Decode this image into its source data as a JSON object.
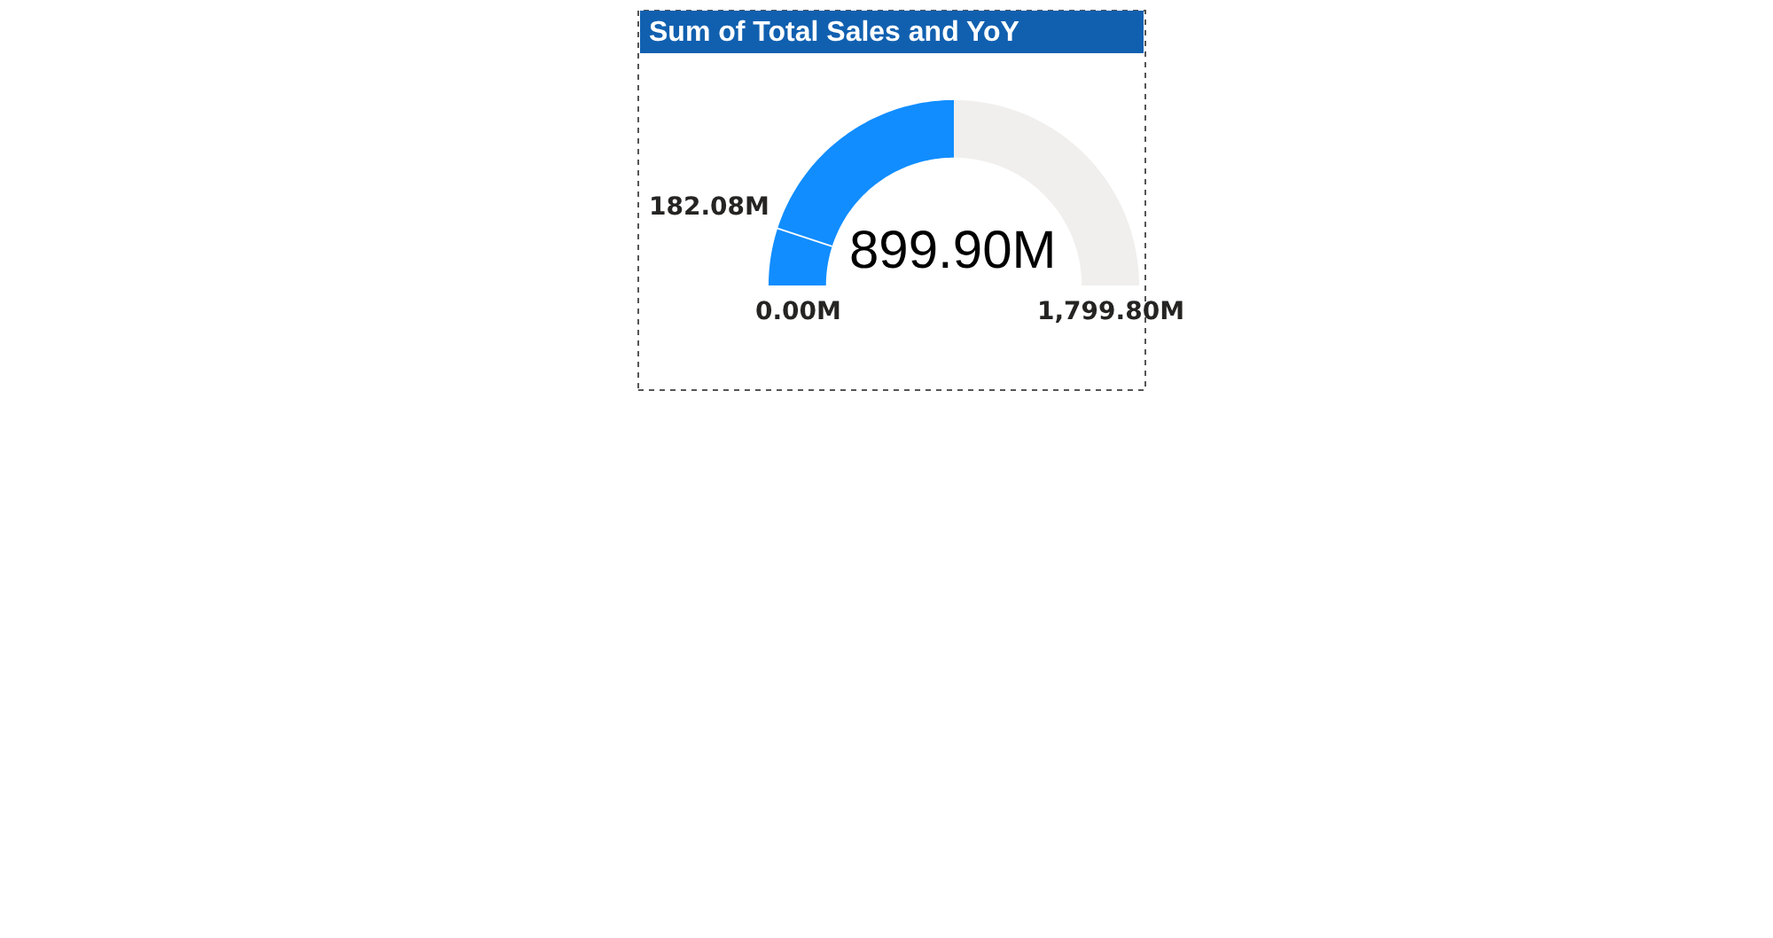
{
  "chart_data": {
    "type": "donut",
    "title": "Sum of Total Sales and YoY",
    "categories": [
      null,
      null,
      null
    ],
    "values": [
      182.08,
      717.82,
      899.9
    ],
    "colors": [
      "#118dff",
      "#118dff",
      "#f0efed"
    ],
    "value_labels": [
      "182.08M",
      null,
      null
    ],
    "annotations": [
      "0.00M",
      "1,799.80M",
      "899.90M"
    ]
  }
}
